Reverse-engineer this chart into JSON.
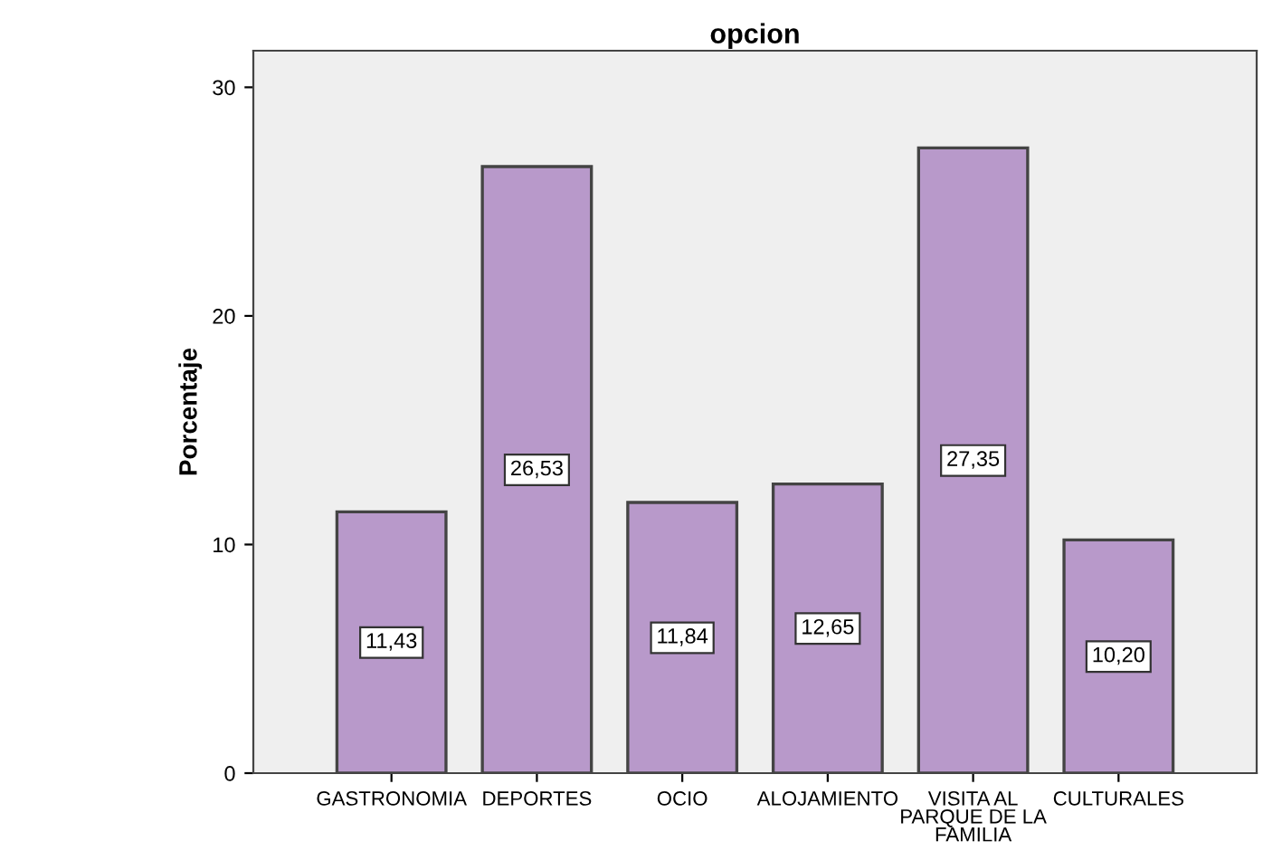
{
  "chart_data": {
    "type": "bar",
    "title": "opcion",
    "ylabel": "Porcentaje",
    "categories": [
      "GASTRONOMIA",
      "DEPORTES",
      "OCIO",
      "ALOJAMIENTO",
      "VISITA AL\nPARQUE DE LA\nFAMILIA",
      "CULTURALES"
    ],
    "values": [
      11.43,
      26.53,
      11.84,
      12.65,
      27.35,
      10.2
    ],
    "value_labels": [
      "11,43",
      "26,53",
      "11,84",
      "12,65",
      "27,35",
      "10,20"
    ],
    "color": "#b899ca",
    "ylim": [
      0,
      31.6
    ],
    "yticks": [
      0,
      10,
      20,
      30
    ],
    "grid": false,
    "legend": false
  }
}
